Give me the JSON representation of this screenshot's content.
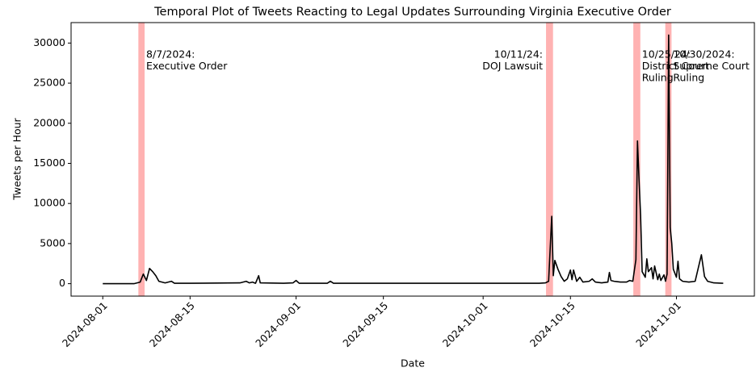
{
  "chart_data": {
    "type": "line",
    "title": "Temporal Plot of Tweets Reacting to Legal Updates Surrounding Virginia Executive Order",
    "xlabel": "Date",
    "ylabel": "Tweets per Hour",
    "color": "#000000",
    "x": [
      "2024-08-01T00:00",
      "2024-08-06T00:00",
      "2024-08-07T00:00",
      "2024-08-07T12:00",
      "2024-08-08T00:00",
      "2024-08-08T12:00",
      "2024-08-09T00:00",
      "2024-08-09T12:00",
      "2024-08-10T00:00",
      "2024-08-11T00:00",
      "2024-08-12T00:00",
      "2024-08-12T12:00",
      "2024-08-15T00:00",
      "2024-08-23T00:00",
      "2024-08-24T00:00",
      "2024-08-24T12:00",
      "2024-08-25T00:00",
      "2024-08-25T12:00",
      "2024-08-26T00:00",
      "2024-08-26T06:00",
      "2024-08-30T00:00",
      "2024-08-31T12:00",
      "2024-09-01T00:00",
      "2024-09-01T12:00",
      "2024-09-06T00:00",
      "2024-09-06T12:00",
      "2024-09-07T00:00",
      "2024-10-10T00:00",
      "2024-10-11T00:00",
      "2024-10-11T12:00",
      "2024-10-12T00:00",
      "2024-10-12T06:00",
      "2024-10-12T12:00",
      "2024-10-13T00:00",
      "2024-10-13T12:00",
      "2024-10-14T00:00",
      "2024-10-14T12:00",
      "2024-10-15T00:00",
      "2024-10-15T06:00",
      "2024-10-15T12:00",
      "2024-10-16T00:00",
      "2024-10-16T12:00",
      "2024-10-17T00:00",
      "2024-10-18T00:00",
      "2024-10-18T12:00",
      "2024-10-19T00:00",
      "2024-10-20T00:00",
      "2024-10-21T00:00",
      "2024-10-21T06:00",
      "2024-10-21T12:00",
      "2024-10-22T00:00",
      "2024-10-23T00:00",
      "2024-10-24T00:00",
      "2024-10-24T12:00",
      "2024-10-25T00:00",
      "2024-10-25T12:00",
      "2024-10-25T18:00",
      "2024-10-26T00:00",
      "2024-10-26T06:00",
      "2024-10-26T12:00",
      "2024-10-27T00:00",
      "2024-10-27T06:00",
      "2024-10-27T12:00",
      "2024-10-28T00:00",
      "2024-10-28T06:00",
      "2024-10-28T12:00",
      "2024-10-29T00:00",
      "2024-10-29T06:00",
      "2024-10-29T12:00",
      "2024-10-30T00:00",
      "2024-10-30T06:00",
      "2024-10-30T12:00",
      "2024-10-30T18:00",
      "2024-10-31T00:00",
      "2024-10-31T06:00",
      "2024-10-31T12:00",
      "2024-11-01T00:00",
      "2024-11-01T06:00",
      "2024-11-01T12:00",
      "2024-11-02T00:00",
      "2024-11-03T00:00",
      "2024-11-04T00:00",
      "2024-11-05T00:00",
      "2024-11-05T12:00",
      "2024-11-06T00:00",
      "2024-11-07T00:00",
      "2024-11-08T12:00"
    ],
    "values": [
      0,
      0,
      200,
      1200,
      400,
      1900,
      1500,
      1000,
      300,
      100,
      300,
      50,
      50,
      100,
      300,
      100,
      200,
      50,
      1000,
      100,
      50,
      100,
      400,
      50,
      50,
      300,
      50,
      50,
      100,
      300,
      8400,
      1000,
      2900,
      1800,
      900,
      300,
      600,
      1700,
      500,
      1700,
      300,
      800,
      200,
      300,
      600,
      200,
      100,
      200,
      1400,
      400,
      300,
      200,
      200,
      400,
      300,
      3000,
      17800,
      13000,
      8500,
      1500,
      800,
      3100,
      1500,
      2000,
      600,
      2200,
      500,
      1200,
      400,
      1100,
      300,
      1200,
      31000,
      7000,
      5000,
      1800,
      800,
      2800,
      600,
      300,
      200,
      300,
      3600,
      900,
      300,
      100,
      50
    ],
    "xlim": [
      "2024-07-26T22:00",
      "2024-11-13T12:00"
    ],
    "xticks": [
      "2024-08-01",
      "2024-08-15",
      "2024-09-01",
      "2024-09-15",
      "2024-10-01",
      "2024-10-15",
      "2024-11-01"
    ],
    "ylim": [
      -1550,
      32550
    ],
    "yticks": [
      0,
      5000,
      10000,
      15000,
      20000,
      25000,
      30000
    ],
    "span_color": "#ff0000",
    "spans": [
      {
        "start": "2024-08-06T17:00",
        "end": "2024-08-07T17:00",
        "label": [
          "8/7/2024:",
          "Executive Order"
        ]
      },
      {
        "start": "2024-10-11T02:00",
        "end": "2024-10-12T05:00",
        "label": [
          "10/11/24:",
          "DOJ Lawsuit"
        ]
      },
      {
        "start": "2024-10-25T02:00",
        "end": "2024-10-26T05:00",
        "label": [
          "10/25/24:",
          "District Court",
          "Ruling"
        ]
      },
      {
        "start": "2024-10-30T05:00",
        "end": "2024-10-31T05:00",
        "label": [
          "10/30/2024:",
          "Supreme Court",
          "Ruling"
        ]
      }
    ]
  }
}
